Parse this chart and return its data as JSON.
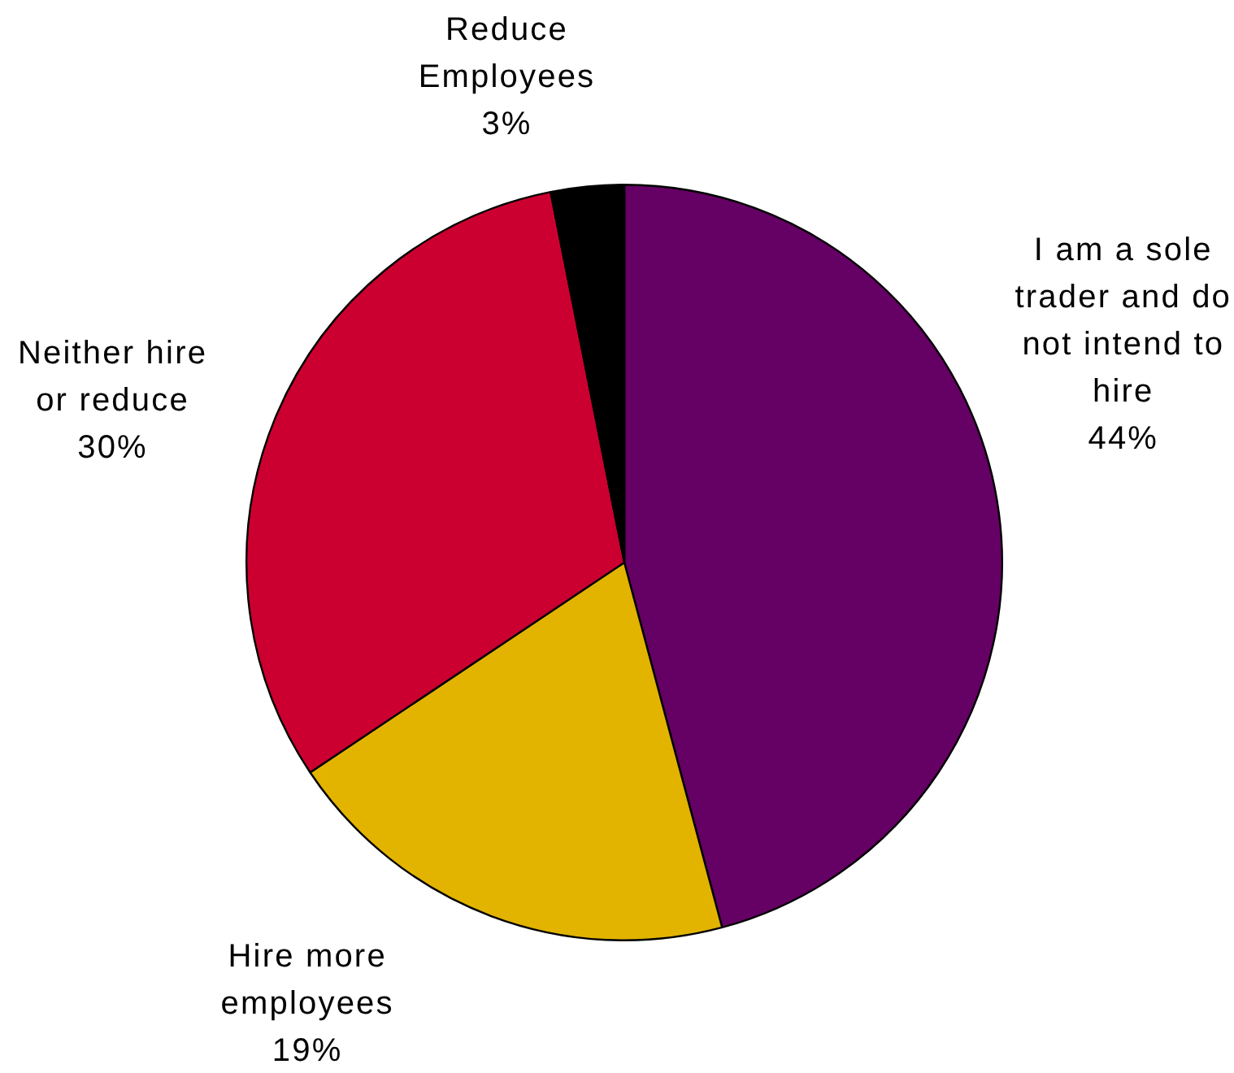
{
  "chart_data": {
    "type": "pie",
    "categories": [
      "I am a sole trader and do not intend to hire",
      "Hire more employees",
      "Neither hire or reduce",
      "Reduce Employees"
    ],
    "values": [
      44,
      19,
      30,
      3
    ],
    "colors": [
      "#650064",
      "#e2b400",
      "#cc0030",
      "#000000"
    ],
    "value_labels": [
      "44%",
      "19%",
      "30%",
      "3%"
    ]
  }
}
